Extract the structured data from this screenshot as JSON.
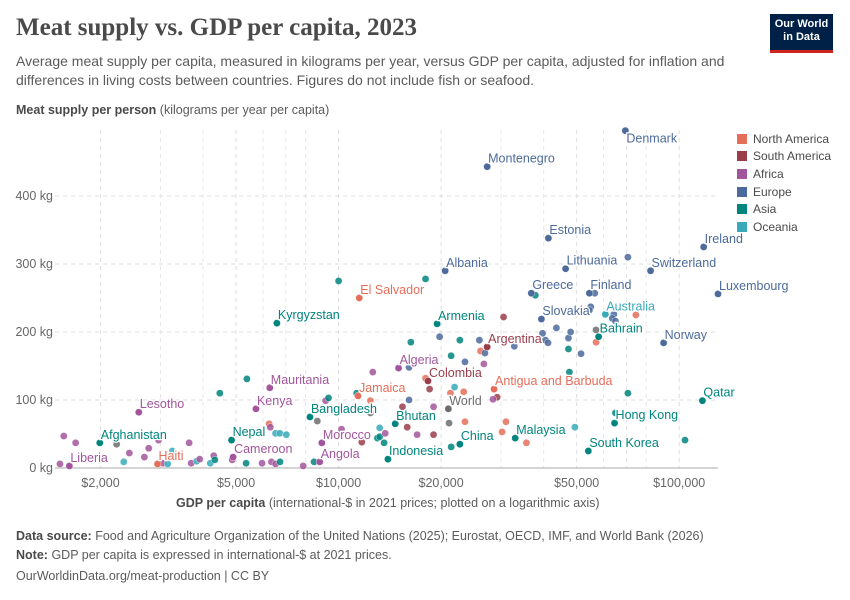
{
  "title": "Meat supply vs. GDP per capita, 2023",
  "subtitle": "Average meat supply per capita, measured in kilograms per year, versus GDP per capita, adjusted for inflation and differences in living costs between countries. Figures do not include fish or seafood.",
  "logo": {
    "line1": "Our World",
    "line2": "in Data"
  },
  "footer": {
    "source_label": "Data source:",
    "source_text": "Food and Agriculture Organization of the United Nations (2025); Eurostat, OECD, IMF, and World Bank (2026)",
    "note_label": "Note:",
    "note_text": "GDP per capita is expressed in international-$ at 2021 prices.",
    "url": "OurWorldinData.org/meat-production | CC BY"
  },
  "chart_data": {
    "type": "scatter",
    "title": "Meat supply vs. GDP per capita, 2023",
    "ylabel_bold": "Meat supply per person",
    "ylabel_rest": " (kilograms per year per capita)",
    "xlabel_bold": "GDP per capita",
    "xlabel_rest": " (international-$ in 2021 prices; plotted on a logarithmic axis)",
    "x_scale": "log",
    "xlim": [
      1470,
      130000
    ],
    "ylim": [
      0,
      497
    ],
    "x_ticks": [
      {
        "v": 2000,
        "label": "$2,000"
      },
      {
        "v": 5000,
        "label": "$5,000"
      },
      {
        "v": 10000,
        "label": "$10,000"
      },
      {
        "v": 20000,
        "label": "$20,000"
      },
      {
        "v": 50000,
        "label": "$50,000"
      },
      {
        "v": 100000,
        "label": "$100,000"
      }
    ],
    "x_grid_extra": [
      3000,
      4000,
      6000,
      7000,
      8000,
      30000,
      40000,
      60000,
      70000,
      80000
    ],
    "y_ticks": [
      {
        "v": 0,
        "label": "0 kg"
      },
      {
        "v": 100,
        "label": "100 kg"
      },
      {
        "v": 200,
        "label": "200 kg"
      },
      {
        "v": 300,
        "label": "300 kg"
      },
      {
        "v": 400,
        "label": "400 kg"
      }
    ],
    "grid": true,
    "legend_position": "right",
    "regions": [
      {
        "name": "North America",
        "color": "#e56e5a"
      },
      {
        "name": "South America",
        "color": "#9a3d4a"
      },
      {
        "name": "Africa",
        "color": "#a2559c"
      },
      {
        "name": "Europe",
        "color": "#4c6a9c"
      },
      {
        "name": "Asia",
        "color": "#00847e"
      },
      {
        "name": "Oceania",
        "color": "#38aaba"
      }
    ],
    "world_color": "#6d6d6d",
    "points": [
      [
        69500,
        496,
        "Europe",
        "Denmark"
      ],
      [
        27300,
        443,
        "Europe",
        "Montenegro"
      ],
      [
        41300,
        338,
        "Europe",
        "Estonia"
      ],
      [
        118000,
        325,
        "Europe",
        "Ireland"
      ],
      [
        46400,
        293,
        "Europe",
        "Lithuania"
      ],
      [
        20550,
        290,
        "Europe",
        "Albania"
      ],
      [
        82400,
        290,
        "Europe",
        "Switzerland"
      ],
      [
        36800,
        257,
        "Europe",
        "Greece"
      ],
      [
        54500,
        257,
        "Europe",
        "Finland"
      ],
      [
        130000,
        256,
        "Europe",
        "Luxembourg"
      ],
      [
        11500,
        250,
        "North America",
        "El Salvador"
      ],
      [
        6590,
        213,
        "Asia",
        "Kyrgyzstan"
      ],
      [
        60700,
        226,
        "Oceania",
        "Australia"
      ],
      [
        39400,
        219,
        "Europe",
        "Slovakia"
      ],
      [
        19460,
        212,
        "Asia",
        "Armenia"
      ],
      [
        58000,
        193,
        "Asia",
        "Bahrain"
      ],
      [
        90000,
        184,
        "Europe",
        "Norway"
      ],
      [
        27300,
        178,
        "South America",
        "Argentina"
      ],
      [
        15000,
        147,
        "Africa",
        "Algeria"
      ],
      [
        6280,
        118,
        "Africa",
        "Mauritania"
      ],
      [
        11400,
        106,
        "North America",
        "Jamaica"
      ],
      [
        18300,
        128,
        "South America",
        "Colombia"
      ],
      [
        28600,
        116,
        "North America",
        "Antigua and Barbuda"
      ],
      [
        5720,
        87,
        "Africa",
        "Kenya"
      ],
      [
        2590,
        82,
        "Africa",
        "Lesotho"
      ],
      [
        8240,
        75,
        "Asia",
        "Bangladesh"
      ],
      [
        117000,
        99,
        "Asia",
        "Qatar"
      ],
      [
        21000,
        87,
        "World",
        "World"
      ],
      [
        14660,
        65,
        "Asia",
        "Bhutan"
      ],
      [
        64600,
        66,
        "Asia",
        "Hong Kong"
      ],
      [
        33000,
        44,
        "Asia",
        "Malaysia"
      ],
      [
        1990,
        37,
        "Asia",
        "Afghanistan"
      ],
      [
        4850,
        41,
        "Asia",
        "Nepal"
      ],
      [
        8930,
        37,
        "Africa",
        "Morocco"
      ],
      [
        22700,
        35,
        "Asia",
        "China"
      ],
      [
        54100,
        25,
        "Asia",
        "South Korea"
      ],
      [
        13960,
        13,
        "Asia",
        "Indonesia"
      ],
      [
        4900,
        16,
        "Africa",
        "Cameroon"
      ],
      [
        8800,
        9,
        "Africa",
        "Angola"
      ],
      [
        2940,
        6,
        "North America",
        "Haiti"
      ],
      [
        1620,
        3,
        "Africa",
        "Liberia"
      ],
      [
        1560,
        47,
        "Africa",
        ""
      ],
      [
        1690,
        37,
        "Africa",
        ""
      ],
      [
        1520,
        6,
        "Africa",
        ""
      ],
      [
        2230,
        35,
        "World",
        ""
      ],
      [
        2430,
        22,
        "Africa",
        ""
      ],
      [
        2770,
        29,
        "Africa",
        ""
      ],
      [
        2690,
        16,
        "Africa",
        ""
      ],
      [
        2340,
        9,
        "Oceania",
        ""
      ],
      [
        2960,
        41,
        "Africa",
        ""
      ],
      [
        3050,
        7,
        "Africa",
        ""
      ],
      [
        3150,
        6,
        "Oceania",
        ""
      ],
      [
        3250,
        25,
        "Oceania",
        ""
      ],
      [
        3640,
        37,
        "Africa",
        ""
      ],
      [
        3690,
        7,
        "Africa",
        ""
      ],
      [
        3830,
        10,
        "Oceania",
        ""
      ],
      [
        3910,
        13,
        "Africa",
        ""
      ],
      [
        4200,
        7,
        "Oceania",
        ""
      ],
      [
        4300,
        18,
        "Africa",
        ""
      ],
      [
        4330,
        12,
        "Asia",
        ""
      ],
      [
        4480,
        110,
        "Asia",
        ""
      ],
      [
        4870,
        12,
        "Africa",
        ""
      ],
      [
        5350,
        7,
        "Asia",
        ""
      ],
      [
        5380,
        131,
        "Asia",
        ""
      ],
      [
        5960,
        7,
        "Africa",
        ""
      ],
      [
        6250,
        65,
        "North America",
        ""
      ],
      [
        6300,
        60,
        "Africa",
        ""
      ],
      [
        6350,
        9,
        "Africa",
        ""
      ],
      [
        6530,
        51,
        "Oceania",
        ""
      ],
      [
        6720,
        51,
        "Oceania",
        ""
      ],
      [
        7020,
        49,
        "Oceania",
        ""
      ],
      [
        6530,
        6,
        "Africa",
        ""
      ],
      [
        6730,
        9,
        "Asia",
        ""
      ],
      [
        7870,
        3,
        "Africa",
        ""
      ],
      [
        8470,
        9,
        "Asia",
        ""
      ],
      [
        8660,
        69,
        "World",
        ""
      ],
      [
        9160,
        99,
        "Africa",
        ""
      ],
      [
        9340,
        103,
        "Asia",
        ""
      ],
      [
        10000,
        275,
        "Asia",
        ""
      ],
      [
        10200,
        57,
        "Africa",
        ""
      ],
      [
        11300,
        110,
        "Asia",
        ""
      ],
      [
        11700,
        38,
        "South America",
        ""
      ],
      [
        12400,
        99,
        "North America",
        ""
      ],
      [
        12600,
        141,
        "Africa",
        ""
      ],
      [
        12400,
        81,
        "World",
        ""
      ],
      [
        13000,
        44,
        "Asia",
        ""
      ],
      [
        13200,
        59,
        "Oceania",
        ""
      ],
      [
        13200,
        46,
        "Asia",
        ""
      ],
      [
        13600,
        37,
        "Asia",
        ""
      ],
      [
        13700,
        51,
        "Africa",
        ""
      ],
      [
        16100,
        148,
        "Europe",
        ""
      ],
      [
        15400,
        90,
        "South America",
        ""
      ],
      [
        16100,
        100,
        "Europe",
        ""
      ],
      [
        15900,
        60,
        "South America",
        ""
      ],
      [
        16300,
        185,
        "Asia",
        ""
      ],
      [
        17000,
        49,
        "Africa",
        ""
      ],
      [
        18000,
        278,
        "Asia",
        ""
      ],
      [
        18000,
        132,
        "North America",
        ""
      ],
      [
        18500,
        116,
        "South America",
        ""
      ],
      [
        19800,
        193,
        "Europe",
        ""
      ],
      [
        22700,
        188,
        "Asia",
        ""
      ],
      [
        25900,
        188,
        "Europe",
        ""
      ],
      [
        26100,
        172,
        "North America",
        ""
      ],
      [
        26900,
        169,
        "Europe",
        ""
      ],
      [
        21400,
        165,
        "Asia",
        ""
      ],
      [
        23500,
        156,
        "Europe",
        ""
      ],
      [
        26700,
        153,
        "Africa",
        ""
      ],
      [
        30500,
        222,
        "South America",
        ""
      ],
      [
        32800,
        179,
        "Europe",
        ""
      ],
      [
        21900,
        119,
        "Oceania",
        ""
      ],
      [
        21300,
        110,
        "North America",
        ""
      ],
      [
        23300,
        112,
        "North America",
        ""
      ],
      [
        29200,
        104,
        "South America",
        ""
      ],
      [
        28400,
        101,
        "Africa",
        ""
      ],
      [
        19000,
        90,
        "Africa",
        ""
      ],
      [
        21100,
        66,
        "World",
        ""
      ],
      [
        23500,
        68,
        "North America",
        ""
      ],
      [
        19000,
        49,
        "South America",
        ""
      ],
      [
        21400,
        31,
        "Asia",
        ""
      ],
      [
        31000,
        68,
        "North America",
        ""
      ],
      [
        30200,
        53,
        "North America",
        ""
      ],
      [
        35600,
        37,
        "North America",
        ""
      ],
      [
        49400,
        60,
        "Oceania",
        ""
      ],
      [
        47600,
        141,
        "Asia",
        ""
      ],
      [
        47300,
        175,
        "Asia",
        ""
      ],
      [
        51500,
        168,
        "Europe",
        ""
      ],
      [
        47300,
        191,
        "Europe",
        ""
      ],
      [
        48000,
        200,
        "Europe",
        ""
      ],
      [
        43600,
        206,
        "Europe",
        ""
      ],
      [
        39700,
        198,
        "Europe",
        ""
      ],
      [
        40500,
        188,
        "Europe",
        ""
      ],
      [
        41200,
        184,
        "Europe",
        ""
      ],
      [
        37800,
        254,
        "Asia",
        ""
      ],
      [
        56500,
        257,
        "Europe",
        ""
      ],
      [
        55000,
        237,
        "Europe",
        ""
      ],
      [
        54500,
        232,
        "Europe",
        ""
      ],
      [
        64300,
        226,
        "Europe",
        ""
      ],
      [
        63600,
        220,
        "Europe",
        ""
      ],
      [
        65000,
        216,
        "Europe",
        ""
      ],
      [
        74600,
        225,
        "North America",
        ""
      ],
      [
        57000,
        203,
        "World",
        ""
      ],
      [
        57000,
        185,
        "North America",
        ""
      ],
      [
        70700,
        310,
        "Europe",
        ""
      ],
      [
        70700,
        110,
        "Asia",
        ""
      ],
      [
        65000,
        81,
        "Asia",
        ""
      ],
      [
        104000,
        41,
        "Asia",
        ""
      ]
    ]
  }
}
